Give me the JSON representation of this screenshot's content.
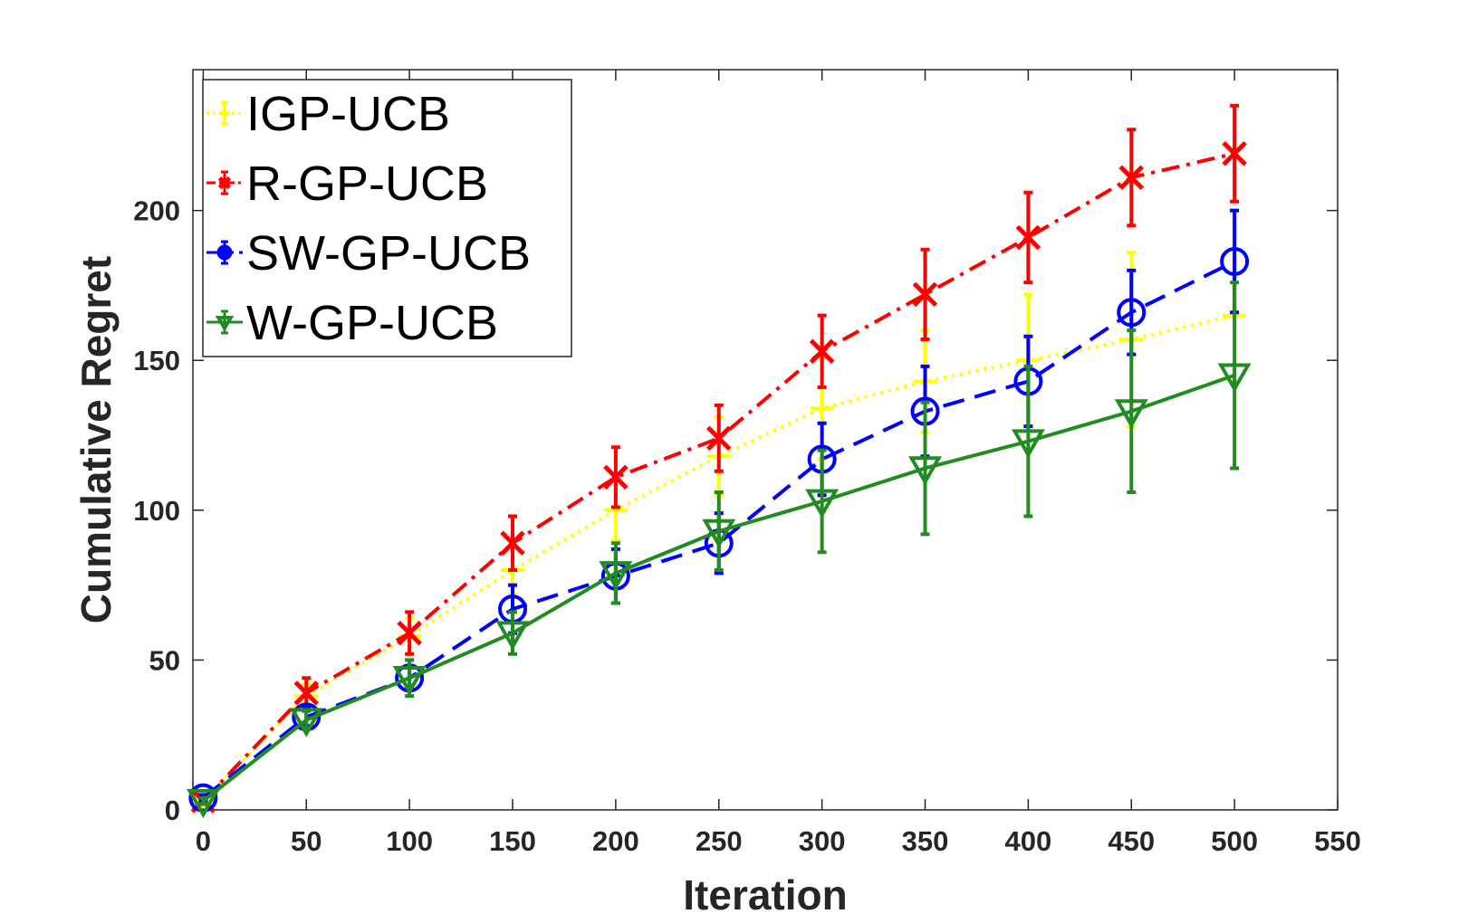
{
  "chart_data": {
    "type": "line",
    "title": "",
    "xlabel": "Iteration",
    "ylabel": "Cumulative Regret",
    "xlim": [
      -5,
      550
    ],
    "ylim": [
      0,
      247
    ],
    "xticks": [
      0,
      50,
      100,
      150,
      200,
      250,
      300,
      350,
      400,
      450,
      500,
      550
    ],
    "yticks": [
      0,
      50,
      100,
      150,
      200
    ],
    "grid": false,
    "legend_position": "top-left",
    "x": [
      0,
      50,
      100,
      150,
      200,
      250,
      300,
      350,
      400,
      450,
      500
    ],
    "series": [
      {
        "name": "IGP-UCB",
        "color": "#ffff00",
        "line_style": "dotted",
        "marker": "plus",
        "values": [
          3,
          38,
          58,
          80,
          100,
          118,
          134,
          143,
          150,
          157,
          165
        ],
        "errors": [
          1,
          4,
          6,
          8,
          10,
          13,
          17,
          17,
          22,
          29,
          22
        ]
      },
      {
        "name": "R-GP-UCB",
        "color": "#ff0000",
        "line_style": "dashdot",
        "marker": "x",
        "values": [
          3,
          39,
          59,
          89,
          111,
          124,
          153,
          172,
          191,
          211,
          219
        ],
        "errors": [
          1,
          5,
          7,
          9,
          10,
          11,
          12,
          15,
          15,
          16,
          16
        ]
      },
      {
        "name": "SW-GP-UCB",
        "color": "#0000ff",
        "line_style": "dashed",
        "marker": "circle",
        "values": [
          4,
          31,
          44,
          67,
          78,
          89,
          117,
          133,
          143,
          166,
          183
        ],
        "errors": [
          1,
          3,
          4,
          8,
          9,
          10,
          12,
          15,
          15,
          14,
          17
        ]
      },
      {
        "name": "W-GP-UCB",
        "color": "#228b22",
        "line_style": "solid",
        "marker": "triangle-down",
        "values": [
          3,
          30,
          44,
          59,
          79,
          93,
          103,
          114,
          123,
          133,
          145
        ],
        "errors": [
          1,
          3,
          6,
          7,
          10,
          13,
          17,
          22,
          25,
          27,
          31
        ]
      }
    ]
  }
}
